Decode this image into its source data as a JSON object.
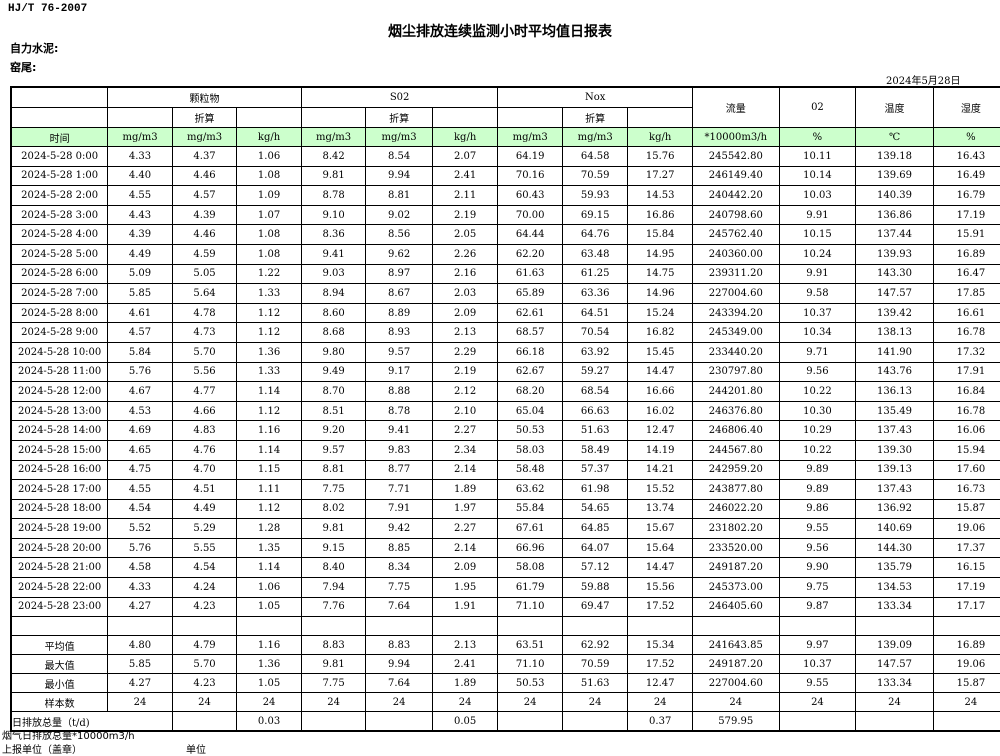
{
  "standard": "HJ/T  76-2007",
  "title": "烟尘排放连续监测小时平均值日报表",
  "company_label": "自力水泥:",
  "location_label": "窑尾:",
  "report_date": "2024年5月28日",
  "header": {
    "groups": [
      "颗粒物",
      "S02",
      "Nox"
    ],
    "converted_label": "折算",
    "single": [
      "流量",
      "02",
      "温度",
      "湿度"
    ],
    "units": [
      "时间",
      "mg/m3",
      "mg/m3",
      "kg/h",
      "mg/m3",
      "mg/m3",
      "kg/h",
      "mg/m3",
      "mg/m3",
      "kg/h",
      "*10000m3/h",
      "%",
      "℃",
      "%"
    ]
  },
  "rows": [
    [
      "2024-5-28 0:00",
      "4.33",
      "4.37",
      "1.06",
      "8.42",
      "8.54",
      "2.07",
      "64.19",
      "64.58",
      "15.76",
      "245542.80",
      "10.11",
      "139.18",
      "16.43"
    ],
    [
      "2024-5-28 1:00",
      "4.40",
      "4.46",
      "1.08",
      "9.81",
      "9.94",
      "2.41",
      "70.16",
      "70.59",
      "17.27",
      "246149.40",
      "10.14",
      "139.69",
      "16.49"
    ],
    [
      "2024-5-28 2:00",
      "4.55",
      "4.57",
      "1.09",
      "8.78",
      "8.81",
      "2.11",
      "60.43",
      "59.93",
      "14.53",
      "240442.20",
      "10.03",
      "140.39",
      "16.79"
    ],
    [
      "2024-5-28 3:00",
      "4.43",
      "4.39",
      "1.07",
      "9.10",
      "9.02",
      "2.19",
      "70.00",
      "69.15",
      "16.86",
      "240798.60",
      "9.91",
      "136.86",
      "17.19"
    ],
    [
      "2024-5-28 4:00",
      "4.39",
      "4.46",
      "1.08",
      "8.36",
      "8.56",
      "2.05",
      "64.44",
      "64.76",
      "15.84",
      "245762.40",
      "10.15",
      "137.44",
      "15.91"
    ],
    [
      "2024-5-28 5:00",
      "4.49",
      "4.59",
      "1.08",
      "9.41",
      "9.62",
      "2.26",
      "62.20",
      "63.48",
      "14.95",
      "240360.00",
      "10.24",
      "139.93",
      "16.89"
    ],
    [
      "2024-5-28 6:00",
      "5.09",
      "5.05",
      "1.22",
      "9.03",
      "8.97",
      "2.16",
      "61.63",
      "61.25",
      "14.75",
      "239311.20",
      "9.91",
      "143.30",
      "16.47"
    ],
    [
      "2024-5-28 7:00",
      "5.85",
      "5.64",
      "1.33",
      "8.94",
      "8.67",
      "2.03",
      "65.89",
      "63.36",
      "14.96",
      "227004.60",
      "9.58",
      "147.57",
      "17.85"
    ],
    [
      "2024-5-28 8:00",
      "4.61",
      "4.78",
      "1.12",
      "8.60",
      "8.89",
      "2.09",
      "62.61",
      "64.51",
      "15.24",
      "243394.20",
      "10.37",
      "139.42",
      "16.61"
    ],
    [
      "2024-5-28 9:00",
      "4.57",
      "4.73",
      "1.12",
      "8.68",
      "8.93",
      "2.13",
      "68.57",
      "70.54",
      "16.82",
      "245349.00",
      "10.34",
      "138.13",
      "16.78"
    ],
    [
      "2024-5-28 10:00",
      "5.84",
      "5.70",
      "1.36",
      "9.80",
      "9.57",
      "2.29",
      "66.18",
      "63.92",
      "15.45",
      "233440.20",
      "9.71",
      "141.90",
      "17.32"
    ],
    [
      "2024-5-28 11:00",
      "5.76",
      "5.56",
      "1.33",
      "9.49",
      "9.17",
      "2.19",
      "62.67",
      "59.27",
      "14.47",
      "230797.80",
      "9.56",
      "143.76",
      "17.91"
    ],
    [
      "2024-5-28 12:00",
      "4.67",
      "4.77",
      "1.14",
      "8.70",
      "8.88",
      "2.12",
      "68.20",
      "68.54",
      "16.66",
      "244201.80",
      "10.22",
      "136.13",
      "16.84"
    ],
    [
      "2024-5-28 13:00",
      "4.53",
      "4.66",
      "1.12",
      "8.51",
      "8.78",
      "2.10",
      "65.04",
      "66.63",
      "16.02",
      "246376.80",
      "10.30",
      "135.49",
      "16.78"
    ],
    [
      "2024-5-28 14:00",
      "4.69",
      "4.83",
      "1.16",
      "9.20",
      "9.41",
      "2.27",
      "50.53",
      "51.63",
      "12.47",
      "246806.40",
      "10.29",
      "137.43",
      "16.06"
    ],
    [
      "2024-5-28 15:00",
      "4.65",
      "4.76",
      "1.14",
      "9.57",
      "9.83",
      "2.34",
      "58.03",
      "58.49",
      "14.19",
      "244567.80",
      "10.22",
      "139.30",
      "15.94"
    ],
    [
      "2024-5-28 16:00",
      "4.75",
      "4.70",
      "1.15",
      "8.81",
      "8.77",
      "2.14",
      "58.48",
      "57.37",
      "14.21",
      "242959.20",
      "9.89",
      "139.13",
      "17.60"
    ],
    [
      "2024-5-28 17:00",
      "4.55",
      "4.51",
      "1.11",
      "7.75",
      "7.71",
      "1.89",
      "63.62",
      "61.98",
      "15.52",
      "243877.80",
      "9.89",
      "137.43",
      "16.73"
    ],
    [
      "2024-5-28 18:00",
      "4.54",
      "4.49",
      "1.12",
      "8.02",
      "7.91",
      "1.97",
      "55.84",
      "54.65",
      "13.74",
      "246022.20",
      "9.86",
      "136.92",
      "15.87"
    ],
    [
      "2024-5-28 19:00",
      "5.52",
      "5.29",
      "1.28",
      "9.81",
      "9.42",
      "2.27",
      "67.61",
      "64.85",
      "15.67",
      "231802.20",
      "9.55",
      "140.69",
      "19.06"
    ],
    [
      "2024-5-28 20:00",
      "5.76",
      "5.55",
      "1.35",
      "9.15",
      "8.85",
      "2.14",
      "66.96",
      "64.07",
      "15.64",
      "233520.00",
      "9.56",
      "144.30",
      "17.37"
    ],
    [
      "2024-5-28 21:00",
      "4.58",
      "4.54",
      "1.14",
      "8.40",
      "8.34",
      "2.09",
      "58.08",
      "57.12",
      "14.47",
      "249187.20",
      "9.90",
      "135.79",
      "16.15"
    ],
    [
      "2024-5-28 22:00",
      "4.33",
      "4.24",
      "1.06",
      "7.94",
      "7.75",
      "1.95",
      "61.79",
      "59.88",
      "15.56",
      "245373.00",
      "9.75",
      "134.53",
      "17.19"
    ],
    [
      "2024-5-28 23:00",
      "4.27",
      "4.23",
      "1.05",
      "7.76",
      "7.64",
      "1.91",
      "71.10",
      "69.47",
      "17.52",
      "246405.60",
      "9.87",
      "133.34",
      "17.17"
    ]
  ],
  "summary": [
    [
      "平均值",
      "4.80",
      "4.79",
      "1.16",
      "8.83",
      "8.83",
      "2.13",
      "63.51",
      "62.92",
      "15.34",
      "241643.85",
      "9.97",
      "139.09",
      "16.89"
    ],
    [
      "最大值",
      "5.85",
      "5.70",
      "1.36",
      "9.81",
      "9.94",
      "2.41",
      "71.10",
      "70.59",
      "17.52",
      "249187.20",
      "10.37",
      "147.57",
      "19.06"
    ],
    [
      "最小值",
      "4.27",
      "4.23",
      "1.05",
      "7.75",
      "7.64",
      "1.89",
      "50.53",
      "51.63",
      "12.47",
      "227004.60",
      "9.55",
      "133.34",
      "15.87"
    ],
    [
      "样本数",
      "24",
      "24",
      "24",
      "24",
      "24",
      "24",
      "24",
      "24",
      "24",
      "24",
      "24",
      "24",
      "24"
    ]
  ],
  "daily_total": {
    "label": "日排放总量（t/d)",
    "values": [
      "",
      "0.03",
      "",
      "",
      "0.05",
      "",
      "",
      "0.37",
      "579.95",
      "",
      "",
      ""
    ]
  },
  "footer": {
    "flue_gas_total": "烟气日排放总量*10000m3/h",
    "reporting_unit": "上报单位（盖章）",
    "unit": "单位"
  }
}
